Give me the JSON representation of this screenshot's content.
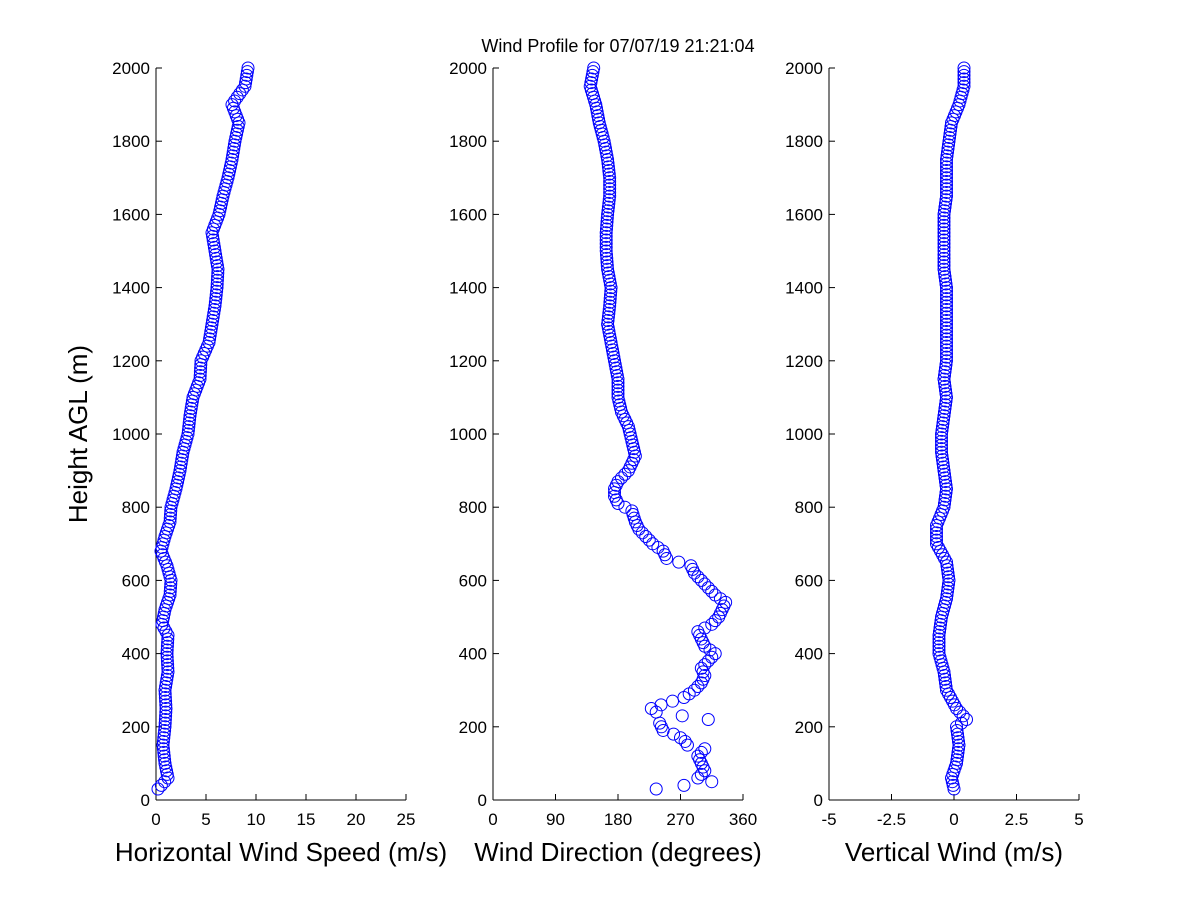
{
  "chart_data": {
    "title": "Wind Profile for  07/07/19 21:21:04",
    "panels": [
      {
        "type": "scatter",
        "xlabel": "Horizontal Wind Speed (m/s)",
        "ylabel": "Height AGL (m)",
        "xlim": [
          0,
          25
        ],
        "ylim": [
          0,
          2000
        ],
        "xticks": [
          "0",
          "5",
          "10",
          "15",
          "20",
          "25"
        ],
        "yticks": [
          "0",
          "200",
          "400",
          "600",
          "800",
          "1000",
          "1200",
          "1400",
          "1600",
          "1800",
          "2000"
        ],
        "marker_color": "#0000ff",
        "profile": [
          [
            30,
            0.2
          ],
          [
            60,
            1.2
          ],
          [
            100,
            0.9
          ],
          [
            150,
            0.7
          ],
          [
            200,
            0.9
          ],
          [
            250,
            1.0
          ],
          [
            300,
            0.9
          ],
          [
            350,
            1.2
          ],
          [
            400,
            1.1
          ],
          [
            450,
            1.2
          ],
          [
            480,
            0.6
          ],
          [
            520,
            0.9
          ],
          [
            560,
            1.4
          ],
          [
            600,
            1.5
          ],
          [
            640,
            1.1
          ],
          [
            680,
            0.5
          ],
          [
            720,
            0.9
          ],
          [
            760,
            1.4
          ],
          [
            800,
            1.5
          ],
          [
            850,
            2.0
          ],
          [
            900,
            2.4
          ],
          [
            950,
            2.7
          ],
          [
            1000,
            3.2
          ],
          [
            1050,
            3.4
          ],
          [
            1100,
            3.7
          ],
          [
            1150,
            4.4
          ],
          [
            1200,
            4.5
          ],
          [
            1250,
            5.3
          ],
          [
            1300,
            5.6
          ],
          [
            1350,
            5.9
          ],
          [
            1400,
            6.1
          ],
          [
            1450,
            6.2
          ],
          [
            1500,
            5.9
          ],
          [
            1550,
            5.6
          ],
          [
            1600,
            6.3
          ],
          [
            1650,
            6.7
          ],
          [
            1700,
            7.2
          ],
          [
            1750,
            7.6
          ],
          [
            1800,
            7.9
          ],
          [
            1850,
            8.3
          ],
          [
            1900,
            7.6
          ],
          [
            1950,
            8.9
          ],
          [
            2000,
            9.2
          ]
        ]
      },
      {
        "type": "scatter",
        "xlabel": "Wind Direction (degrees)",
        "ylabel": "",
        "xlim": [
          0,
          360
        ],
        "ylim": [
          0,
          2000
        ],
        "xticks": [
          "0",
          "90",
          "180",
          "270",
          "360"
        ],
        "yticks": [
          "0",
          "200",
          "400",
          "600",
          "800",
          "1000",
          "1200",
          "1400",
          "1600",
          "1800",
          "2000"
        ],
        "marker_color": "#0000ff",
        "profile": [
          [
            30,
            235
          ],
          [
            50,
            315
          ],
          [
            60,
            295
          ],
          [
            80,
            305
          ],
          [
            100,
            300
          ],
          [
            120,
            295
          ],
          [
            140,
            305
          ],
          [
            150,
            280
          ],
          [
            165,
            275
          ],
          [
            180,
            260
          ],
          [
            190,
            245
          ],
          [
            210,
            240
          ],
          [
            220,
            310
          ],
          [
            240,
            235
          ],
          [
            250,
            228
          ],
          [
            260,
            242
          ],
          [
            280,
            275
          ],
          [
            300,
            290
          ],
          [
            320,
            300
          ],
          [
            340,
            305
          ],
          [
            360,
            300
          ],
          [
            380,
            310
          ],
          [
            400,
            320
          ],
          [
            420,
            305
          ],
          [
            440,
            300
          ],
          [
            460,
            295
          ],
          [
            480,
            315
          ],
          [
            500,
            325
          ],
          [
            520,
            330
          ],
          [
            540,
            335
          ],
          [
            560,
            320
          ],
          [
            580,
            310
          ],
          [
            600,
            300
          ],
          [
            620,
            290
          ],
          [
            640,
            285
          ],
          [
            660,
            250
          ],
          [
            680,
            245
          ],
          [
            700,
            230
          ],
          [
            720,
            220
          ],
          [
            740,
            210
          ],
          [
            760,
            205
          ],
          [
            790,
            200
          ],
          [
            810,
            180
          ],
          [
            830,
            175
          ],
          [
            850,
            175
          ],
          [
            870,
            180
          ],
          [
            900,
            195
          ],
          [
            940,
            205
          ],
          [
            980,
            200
          ],
          [
            1020,
            195
          ],
          [
            1060,
            185
          ],
          [
            1100,
            180
          ],
          [
            1150,
            180
          ],
          [
            1200,
            175
          ],
          [
            1250,
            170
          ],
          [
            1300,
            165
          ],
          [
            1350,
            168
          ],
          [
            1400,
            170
          ],
          [
            1450,
            165
          ],
          [
            1500,
            163
          ],
          [
            1550,
            163
          ],
          [
            1600,
            165
          ],
          [
            1650,
            168
          ],
          [
            1700,
            168
          ],
          [
            1750,
            165
          ],
          [
            1800,
            160
          ],
          [
            1850,
            153
          ],
          [
            1900,
            148
          ],
          [
            1950,
            140
          ],
          [
            2000,
            145
          ]
        ]
      },
      {
        "type": "scatter",
        "xlabel": "Vertical Wind (m/s)",
        "ylabel": "",
        "xlim": [
          -5,
          5
        ],
        "ylim": [
          0,
          2000
        ],
        "xticks": [
          "-5",
          "-2.5",
          "0",
          "2.5",
          "5"
        ],
        "yticks": [
          "0",
          "200",
          "400",
          "600",
          "800",
          "1000",
          "1200",
          "1400",
          "1600",
          "1800",
          "2000"
        ],
        "marker_color": "#0000ff",
        "profile": [
          [
            30,
            0.0
          ],
          [
            60,
            -0.1
          ],
          [
            100,
            0.1
          ],
          [
            150,
            0.2
          ],
          [
            200,
            0.1
          ],
          [
            220,
            0.5
          ],
          [
            250,
            0.1
          ],
          [
            300,
            -0.3
          ],
          [
            350,
            -0.4
          ],
          [
            400,
            -0.6
          ],
          [
            450,
            -0.6
          ],
          [
            500,
            -0.5
          ],
          [
            550,
            -0.3
          ],
          [
            600,
            -0.2
          ],
          [
            650,
            -0.3
          ],
          [
            700,
            -0.7
          ],
          [
            750,
            -0.7
          ],
          [
            800,
            -0.4
          ],
          [
            850,
            -0.3
          ],
          [
            900,
            -0.4
          ],
          [
            950,
            -0.5
          ],
          [
            1000,
            -0.5
          ],
          [
            1050,
            -0.4
          ],
          [
            1100,
            -0.3
          ],
          [
            1150,
            -0.4
          ],
          [
            1200,
            -0.3
          ],
          [
            1250,
            -0.3
          ],
          [
            1300,
            -0.3
          ],
          [
            1350,
            -0.3
          ],
          [
            1400,
            -0.3
          ],
          [
            1450,
            -0.4
          ],
          [
            1500,
            -0.4
          ],
          [
            1550,
            -0.4
          ],
          [
            1600,
            -0.4
          ],
          [
            1650,
            -0.3
          ],
          [
            1700,
            -0.3
          ],
          [
            1750,
            -0.3
          ],
          [
            1800,
            -0.2
          ],
          [
            1850,
            -0.1
          ],
          [
            1900,
            0.2
          ],
          [
            1950,
            0.4
          ],
          [
            2000,
            0.4
          ]
        ]
      }
    ]
  }
}
